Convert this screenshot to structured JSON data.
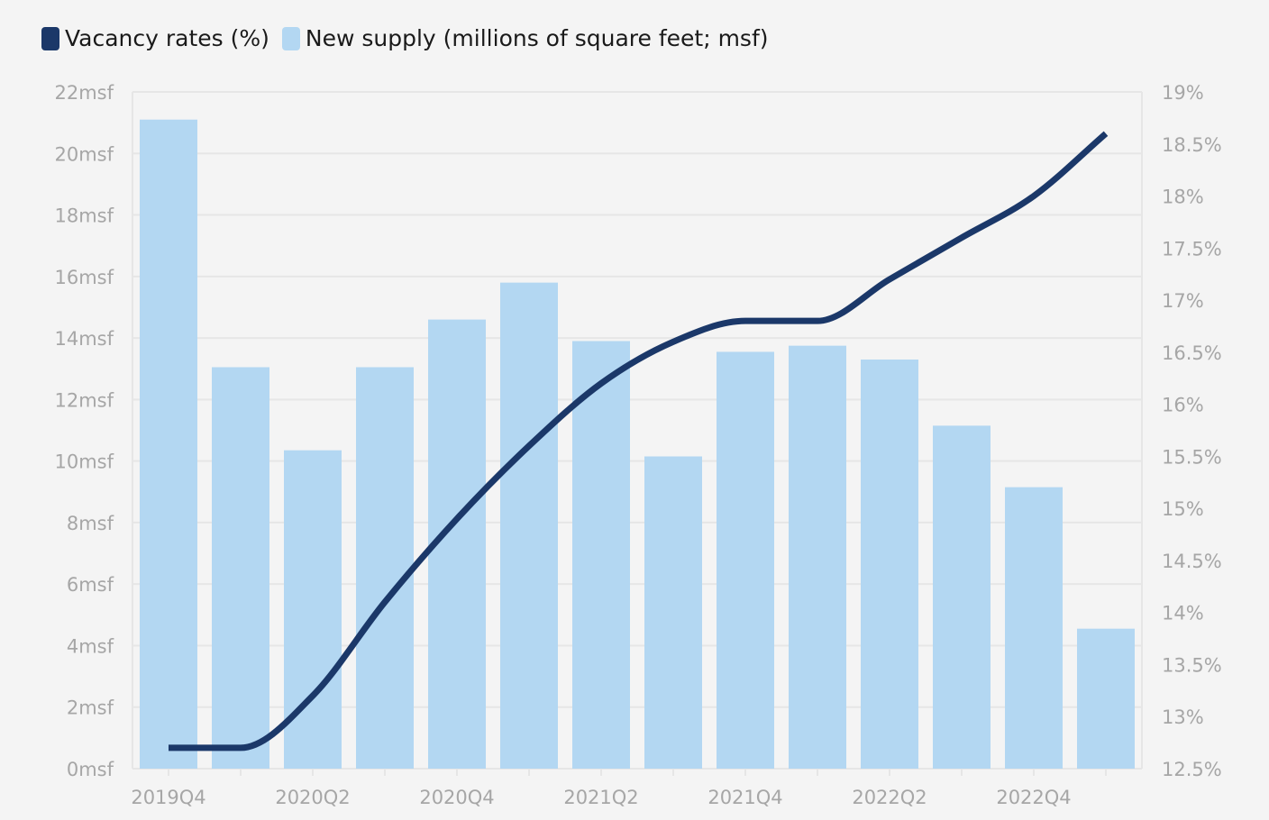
{
  "legend": {
    "vacancy_label": "Vacancy rates (%)",
    "supply_label": "New supply (millions of square feet; msf)"
  },
  "colors": {
    "bar": "#b3d7f2",
    "line": "#1b3869",
    "grid": "#e6e6e6",
    "tick_text": "#a6a6a6",
    "background": "#f4f4f4"
  },
  "chart_data": {
    "type": "bar",
    "categories": [
      "2019Q4",
      "2020Q1",
      "2020Q2",
      "2020Q3",
      "2020Q4",
      "2021Q1",
      "2021Q2",
      "2021Q3",
      "2021Q4",
      "2022Q1",
      "2022Q2",
      "2022Q3",
      "2022Q4",
      "2023Q1"
    ],
    "x_tick_labels": [
      "2019Q4",
      "",
      "2020Q2",
      "",
      "2020Q4",
      "",
      "2021Q2",
      "",
      "2021Q4",
      "",
      "2022Q2",
      "",
      "2022Q4",
      ""
    ],
    "series": [
      {
        "name": "New supply (millions of square feet; msf)",
        "type": "bar",
        "axis": "left",
        "values": [
          21.1,
          13.05,
          10.35,
          13.05,
          14.6,
          15.8,
          13.9,
          10.15,
          13.55,
          13.75,
          13.3,
          11.15,
          9.15,
          4.55
        ]
      },
      {
        "name": "Vacancy rates (%)",
        "type": "line",
        "axis": "right",
        "values": [
          12.7,
          12.7,
          13.2,
          14.1,
          14.9,
          15.6,
          16.2,
          16.6,
          16.8,
          16.8,
          17.2,
          17.6,
          18.0,
          18.6
        ]
      }
    ],
    "left_axis": {
      "range": [
        0,
        22
      ],
      "ticks": [
        0,
        2,
        4,
        6,
        8,
        10,
        12,
        14,
        16,
        18,
        20,
        22
      ],
      "tick_labels": [
        "0msf",
        "2msf",
        "4msf",
        "6msf",
        "8msf",
        "10msf",
        "12msf",
        "14msf",
        "16msf",
        "18msf",
        "20msf",
        "22msf"
      ]
    },
    "right_axis": {
      "range": [
        12.5,
        19
      ],
      "ticks": [
        12.5,
        13,
        13.5,
        14,
        14.5,
        15,
        15.5,
        16,
        16.5,
        17,
        17.5,
        18,
        18.5,
        19
      ],
      "tick_labels": [
        "12.5%",
        "13%",
        "13.5%",
        "14%",
        "14.5%",
        "15%",
        "15.5%",
        "16%",
        "16.5%",
        "17%",
        "17.5%",
        "18%",
        "18.5%",
        "19%"
      ]
    },
    "grid": true,
    "legend_position": "top-left"
  }
}
